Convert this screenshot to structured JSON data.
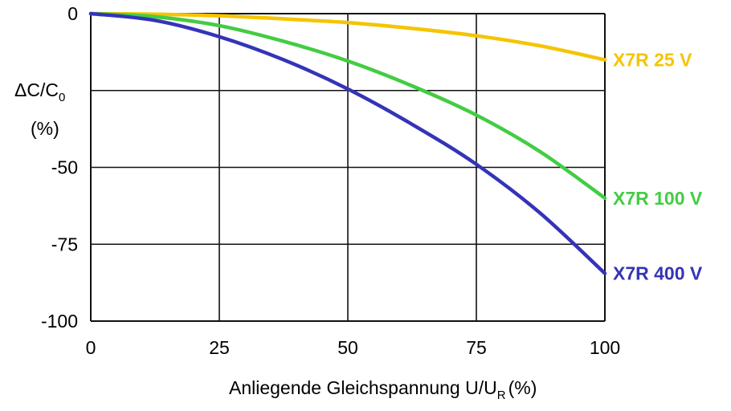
{
  "chart_data": {
    "type": "line",
    "title": "",
    "ylabel": "ΔC/C",
    "ylabel_subscript": "0",
    "ylabel_unit": "(%)",
    "xlabel": "Anliegende Gleichspannung U/U",
    "xlabel_subscript": "R",
    "xlabel_unit": "(%)",
    "xlim": [
      0,
      100
    ],
    "ylim": [
      -100,
      0
    ],
    "x_ticks": [
      "0",
      "25",
      "50",
      "75",
      "100"
    ],
    "y_ticks": [
      "0",
      "-50",
      "-75",
      "-100"
    ],
    "y_tick_values": [
      0,
      -50,
      -75,
      -100
    ],
    "grid": true,
    "legend": "labels at right end of each line",
    "x": [
      0,
      12.5,
      25,
      37.5,
      50,
      62.5,
      75,
      87.5,
      100
    ],
    "series": [
      {
        "name": "X7R  25 V",
        "color": "#f5c400",
        "values": [
          0,
          -0.2,
          -0.7,
          -1.7,
          -2.9,
          -4.8,
          -7.2,
          -10.5,
          -15
        ]
      },
      {
        "name": "X7R  100 V",
        "color": "#44cc44",
        "values": [
          0,
          -1,
          -3.9,
          -9,
          -15.4,
          -23.5,
          -33,
          -45,
          -60
        ]
      },
      {
        "name": "X7R  400 V",
        "color": "#3434b8",
        "values": [
          0,
          -2.2,
          -7.5,
          -15,
          -24.5,
          -36,
          -49,
          -65,
          -84.5
        ]
      }
    ]
  }
}
